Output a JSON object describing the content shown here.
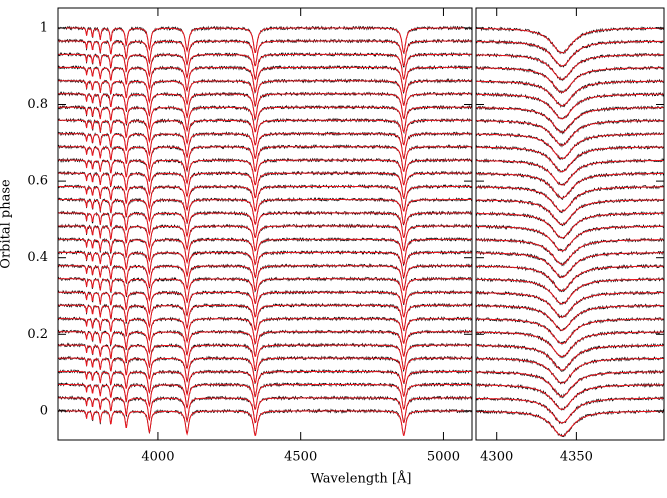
{
  "chart_data": {
    "type": "spectra",
    "x_label": "Wavelength [Å]",
    "y_label": "Orbital phase",
    "xlim": [
      3650,
      5100
    ],
    "xticks": [
      4000,
      4500,
      5000
    ],
    "x2lim": [
      4287,
      4405
    ],
    "x2ticks": [
      4300,
      4350
    ],
    "ylim": [
      -0.076,
      1.052
    ],
    "yticks": [
      0,
      0.2,
      0.4,
      0.6,
      0.8,
      1
    ],
    "observed_color": "#000000",
    "model_color": "#e8141c",
    "phases": [
      0.0,
      0.034,
      0.069,
      0.103,
      0.138,
      0.172,
      0.207,
      0.241,
      0.276,
      0.31,
      0.345,
      0.379,
      0.414,
      0.448,
      0.483,
      0.517,
      0.552,
      0.586,
      0.621,
      0.655,
      0.69,
      0.724,
      0.759,
      0.793,
      0.828,
      0.862,
      0.897,
      0.931,
      0.966,
      1.0
    ],
    "lines": [
      {
        "wavelength": 3750,
        "depth": 0.02,
        "width": 2
      },
      {
        "wavelength": 3771,
        "depth": 0.025,
        "width": 2.5
      },
      {
        "wavelength": 3798,
        "depth": 0.03,
        "width": 3
      },
      {
        "wavelength": 3835,
        "depth": 0.035,
        "width": 3.5
      },
      {
        "wavelength": 3889,
        "depth": 0.045,
        "width": 4.5
      },
      {
        "wavelength": 3970,
        "depth": 0.055,
        "width": 6
      },
      {
        "wavelength": 4102,
        "depth": 0.06,
        "width": 7
      },
      {
        "wavelength": 4341,
        "depth": 0.065,
        "width": 8
      },
      {
        "wavelength": 4861,
        "depth": 0.065,
        "width": 8
      }
    ]
  }
}
